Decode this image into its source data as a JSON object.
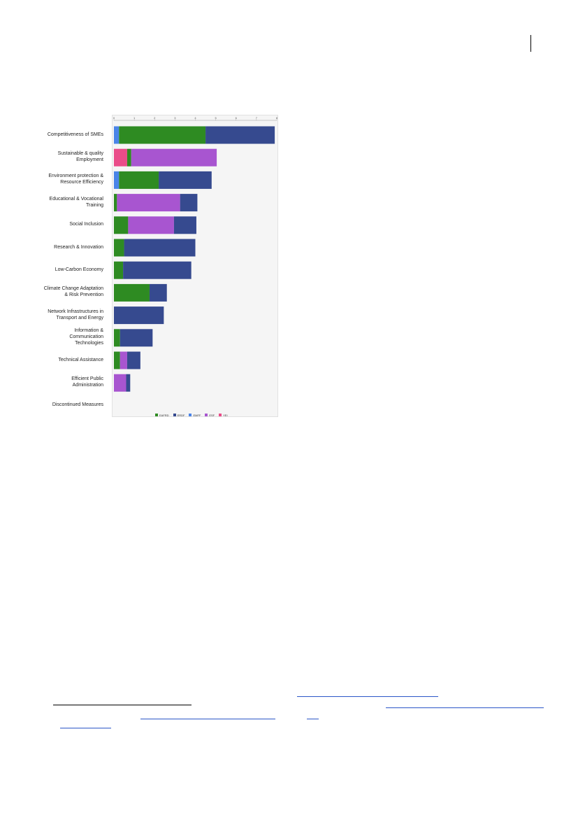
{
  "page": {
    "header_mark": "|"
  },
  "colors": {
    "EAFRD": "#2e8b22",
    "ERDF": "#364a8f",
    "EMFF": "#4a84e8",
    "ESF": "#a855d0",
    "YEI": "#ea4c89"
  },
  "chart_data": {
    "type": "bar",
    "orientation": "horizontal",
    "stacked": true,
    "title": "",
    "xlabel": "",
    "ylabel": "",
    "xlim": [
      0,
      8
    ],
    "xticks": [
      "0",
      "1",
      "2",
      "3",
      "4",
      "5",
      "6",
      "7",
      "8"
    ],
    "grid": false,
    "legend_position": "bottom",
    "categories": [
      "Competitiveness of SMEs",
      "Sustainable & quality Employment",
      "Environment protection & Resource Efficiency",
      "Educational & Vocational Training",
      "Social Inclusion",
      "Research & Innovation",
      "Low-Carbon Economy",
      "Climate Change Adaptation & Risk Prevention",
      "Network Infrastructures in Transport and Energy",
      "Information & Communication Technologies",
      "Technical Assistance",
      "Efficient Public Administration",
      "Discontinued Measures"
    ],
    "series": [
      {
        "name": "EMFF",
        "values": [
          0.25,
          0,
          0.25,
          0,
          0,
          0,
          0,
          0,
          0,
          0,
          0,
          0,
          0
        ]
      },
      {
        "name": "YEI",
        "values": [
          0,
          0.65,
          0,
          0,
          0,
          0,
          0,
          0,
          0,
          0,
          0,
          0,
          0
        ]
      },
      {
        "name": "EAFRD",
        "values": [
          4.25,
          0.2,
          1.95,
          0.15,
          0.7,
          0.5,
          0.45,
          1.75,
          0,
          0.3,
          0.3,
          0,
          0
        ]
      },
      {
        "name": "ESF",
        "values": [
          0,
          4.2,
          0,
          3.1,
          2.25,
          0,
          0,
          0,
          0,
          0,
          0.35,
          0.6,
          0
        ]
      },
      {
        "name": "ERDF",
        "values": [
          3.4,
          0,
          2.6,
          0.85,
          1.1,
          3.5,
          3.35,
          0.85,
          2.45,
          1.6,
          0.65,
          0.2,
          0
        ]
      }
    ],
    "legend": [
      "EAFRD",
      "ERDF",
      "EMFF",
      "ESF",
      "YEI"
    ]
  }
}
